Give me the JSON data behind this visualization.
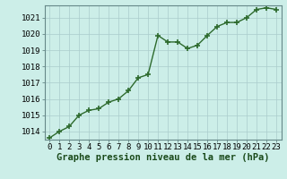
{
  "x": [
    0,
    1,
    2,
    3,
    4,
    5,
    6,
    7,
    8,
    9,
    10,
    11,
    12,
    13,
    14,
    15,
    16,
    17,
    18,
    19,
    20,
    21,
    22,
    23
  ],
  "y": [
    1013.6,
    1014.0,
    1014.3,
    1015.0,
    1015.3,
    1015.4,
    1015.8,
    1016.0,
    1016.5,
    1017.3,
    1017.5,
    1019.9,
    1019.5,
    1019.5,
    1019.1,
    1019.3,
    1019.9,
    1020.45,
    1020.7,
    1020.7,
    1021.0,
    1021.5,
    1021.6,
    1021.5
  ],
  "ylim": [
    1013.5,
    1021.75
  ],
  "yticks": [
    1014,
    1015,
    1016,
    1017,
    1018,
    1019,
    1020,
    1021
  ],
  "xticks": [
    0,
    1,
    2,
    3,
    4,
    5,
    6,
    7,
    8,
    9,
    10,
    11,
    12,
    13,
    14,
    15,
    16,
    17,
    18,
    19,
    20,
    21,
    22,
    23
  ],
  "line_color": "#2d6a2d",
  "marker": "+",
  "marker_size": 5,
  "background_color": "#cceee8",
  "grid_color": "#aacccc",
  "xlabel": "Graphe pression niveau de la mer (hPa)",
  "xlabel_fontsize": 7.5,
  "tick_fontsize": 6.5,
  "line_width": 1.0,
  "fig_bg": "#cceee8",
  "spine_color": "#668888"
}
